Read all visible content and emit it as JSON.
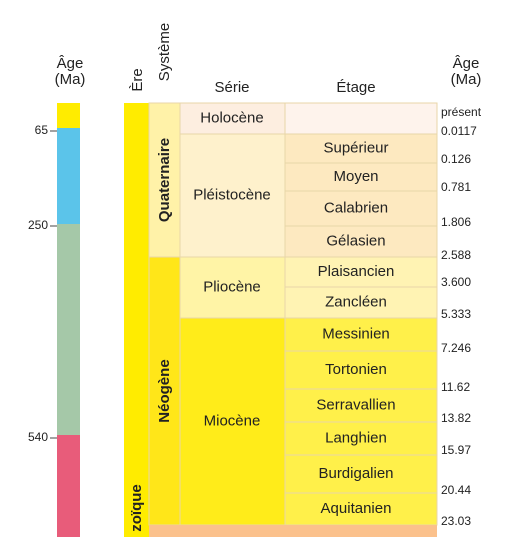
{
  "left_scale": {
    "header": [
      "Âge",
      "(Ma)"
    ],
    "labels": [
      "65",
      "250",
      "540"
    ]
  },
  "era": {
    "header": "Ère",
    "name": "zoïque"
  },
  "system": {
    "header": "Système",
    "items": [
      "Quaternaire",
      "Néogène"
    ]
  },
  "series": {
    "header": "Série",
    "items": [
      "Holocène",
      "Pléistocène",
      "Pliocène",
      "Miocène"
    ]
  },
  "stages": {
    "header": "Étage",
    "items": [
      "Supérieur",
      "Moyen",
      "Calabrien",
      "Gélasien",
      "Plaisancien",
      "Zancléen",
      "Messinien",
      "Tortonien",
      "Serravallien",
      "Langhien",
      "Burdigalien",
      "Aquitanien"
    ]
  },
  "right_scale": {
    "header": [
      "Âge",
      "(Ma)"
    ],
    "labels": [
      "présent",
      "0.0117",
      "0.126",
      "0.781",
      "1.806",
      "2.588",
      "3.600",
      "5.333",
      "7.246",
      "11.62",
      "13.82",
      "15.97",
      "20.44",
      "23.03"
    ]
  }
}
